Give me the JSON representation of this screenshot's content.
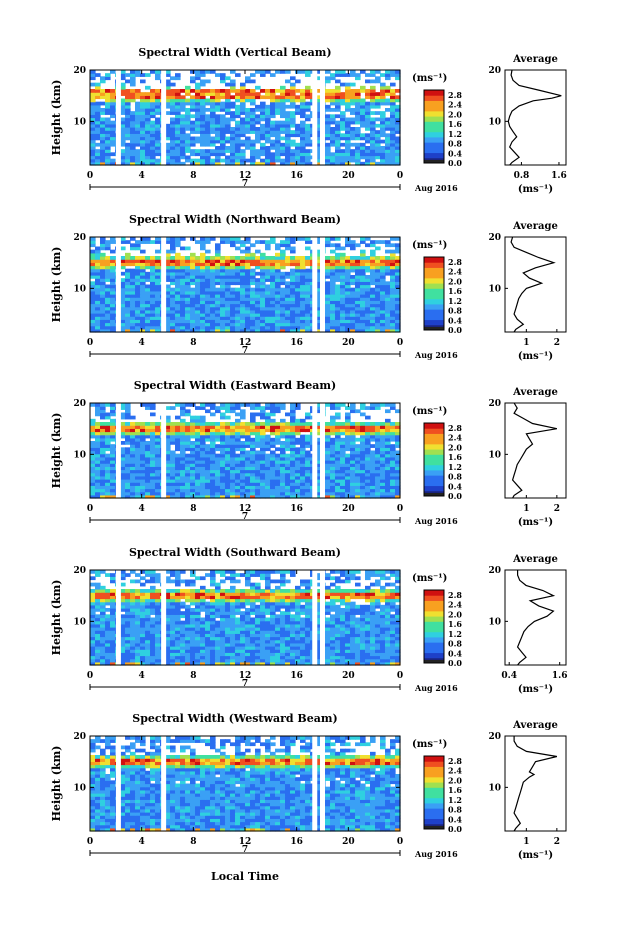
{
  "figure": {
    "local_time_label": "Local Time",
    "unit_label": "(ms⁻¹)",
    "avg_title": "Average",
    "ylabel": "Height (km)",
    "date_label": "Aug 2016",
    "day_marker": "7",
    "colormap": [
      "#1a237e",
      "#1e40c8",
      "#2a6ef0",
      "#3aa0f5",
      "#2fd0e0",
      "#40e0a0",
      "#a0e050",
      "#f0e030",
      "#f8a020",
      "#f05020",
      "#d01010"
    ]
  },
  "chart_data": [
    {
      "type": "heatmap",
      "title": "Spectral Width (Vertical Beam)",
      "xlabel": "Local Time",
      "ylabel": "Height (km)",
      "x_ticks": [
        "0",
        "4",
        "8",
        "12",
        "16",
        "20",
        "0"
      ],
      "y_ticks": [
        "10",
        "20"
      ],
      "xlim": [
        0,
        24
      ],
      "ylim": [
        1.5,
        20
      ],
      "colorbar": {
        "unit": "(ms⁻¹)",
        "ticks": [
          "0.0",
          "0.4",
          "0.8",
          "1.2",
          "1.6",
          "2.0",
          "2.4",
          "2.8"
        ],
        "range": [
          0,
          3.0
        ]
      },
      "date": "Aug 2016",
      "day": "7",
      "data_gaps_local_time": [
        2.2,
        5.7,
        17.4,
        18.0
      ],
      "average_profile": {
        "xlabel": "(ms⁻¹)",
        "x_ticks": [
          "0.8",
          "1.6"
        ],
        "xlim": [
          0.45,
          1.75
        ],
        "height_km": [
          1.5,
          2,
          3,
          4,
          5,
          6,
          7,
          8,
          9,
          10,
          11,
          12,
          13,
          14,
          14.5,
          15,
          16,
          17,
          18,
          19,
          20
        ],
        "width": [
          0.55,
          0.6,
          0.75,
          0.65,
          0.55,
          0.6,
          0.7,
          0.62,
          0.55,
          0.52,
          0.55,
          0.6,
          0.75,
          1.05,
          1.45,
          1.65,
          1.2,
          0.75,
          0.62,
          0.58,
          0.6
        ]
      }
    },
    {
      "type": "heatmap",
      "title": "Spectral Width (Northward Beam)",
      "xlabel": "Local Time",
      "ylabel": "Height (km)",
      "x_ticks": [
        "0",
        "4",
        "8",
        "12",
        "16",
        "20",
        "0"
      ],
      "y_ticks": [
        "10",
        "20"
      ],
      "xlim": [
        0,
        24
      ],
      "ylim": [
        1.5,
        20
      ],
      "colorbar": {
        "unit": "(ms⁻¹)",
        "ticks": [
          "0.0",
          "0.4",
          "0.8",
          "1.2",
          "1.6",
          "2.0",
          "2.4",
          "2.8"
        ],
        "range": [
          0,
          3.0
        ]
      },
      "date": "Aug 2016",
      "day": "7",
      "data_gaps_local_time": [
        2.2,
        5.7,
        17.4,
        18.0
      ],
      "average_profile": {
        "xlabel": "(ms⁻¹)",
        "x_ticks": [
          "1",
          "2"
        ],
        "xlim": [
          0.3,
          2.3
        ],
        "height_km": [
          1.5,
          2,
          3,
          4,
          5,
          6,
          7,
          8,
          9,
          10,
          11,
          12,
          13,
          14,
          15,
          16,
          17,
          18,
          19,
          20
        ],
        "width": [
          0.6,
          0.65,
          0.9,
          0.7,
          0.6,
          0.65,
          0.7,
          0.75,
          0.85,
          1.0,
          1.5,
          1.1,
          0.9,
          1.3,
          1.9,
          1.4,
          1.0,
          0.6,
          0.5,
          0.55
        ]
      }
    },
    {
      "type": "heatmap",
      "title": "Spectral Width (Eastward Beam)",
      "xlabel": "Local Time",
      "ylabel": "Height (km)",
      "x_ticks": [
        "0",
        "4",
        "8",
        "12",
        "16",
        "20",
        "0"
      ],
      "y_ticks": [
        "10",
        "20"
      ],
      "xlim": [
        0,
        24
      ],
      "ylim": [
        1.5,
        20
      ],
      "colorbar": {
        "unit": "(ms⁻¹)",
        "ticks": [
          "0.0",
          "0.4",
          "0.8",
          "1.2",
          "1.6",
          "2.0",
          "2.4",
          "2.8"
        ],
        "range": [
          0,
          3.0
        ]
      },
      "date": "Aug 2016",
      "day": "7",
      "data_gaps_local_time": [
        2.2,
        5.7,
        17.4,
        18.0
      ],
      "average_profile": {
        "xlabel": "(ms⁻¹)",
        "x_ticks": [
          "1",
          "2"
        ],
        "xlim": [
          0.3,
          2.3
        ],
        "height_km": [
          1.5,
          2,
          3,
          4,
          5,
          6,
          7,
          8,
          9,
          10,
          11,
          12,
          13,
          14,
          15,
          16,
          17,
          18,
          19,
          20
        ],
        "width": [
          0.55,
          0.6,
          0.85,
          0.7,
          0.55,
          0.6,
          0.65,
          0.7,
          0.8,
          0.9,
          1.0,
          1.2,
          1.1,
          1.0,
          2.0,
          1.2,
          0.9,
          0.6,
          0.7,
          0.6
        ]
      }
    },
    {
      "type": "heatmap",
      "title": "Spectral Width (Southward Beam)",
      "xlabel": "Local Time",
      "ylabel": "Height (km)",
      "x_ticks": [
        "0",
        "4",
        "8",
        "12",
        "16",
        "20",
        "0"
      ],
      "y_ticks": [
        "10",
        "20"
      ],
      "xlim": [
        0,
        24
      ],
      "ylim": [
        1.5,
        20
      ],
      "colorbar": {
        "unit": "(ms⁻¹)",
        "ticks": [
          "0.0",
          "0.4",
          "0.8",
          "1.2",
          "1.6",
          "2.0",
          "2.4",
          "2.8"
        ],
        "range": [
          0,
          3.0
        ]
      },
      "date": "Aug 2016",
      "day": "7",
      "data_gaps_local_time": [
        2.2,
        5.7,
        17.4,
        18.0
      ],
      "average_profile": {
        "xlabel": "(ms⁻¹)",
        "x_ticks": [
          "0.4",
          "1.6"
        ],
        "xlim": [
          0.3,
          1.75
        ],
        "height_km": [
          1.5,
          2,
          3,
          4,
          5,
          6,
          7,
          8,
          9,
          10,
          11,
          12,
          13,
          14,
          15,
          16,
          17,
          18,
          19,
          20
        ],
        "width": [
          0.6,
          0.65,
          0.8,
          0.7,
          0.6,
          0.65,
          0.7,
          0.75,
          0.85,
          1.0,
          1.3,
          1.45,
          1.1,
          0.9,
          1.45,
          1.2,
          0.8,
          0.65,
          0.6,
          0.6
        ]
      }
    },
    {
      "type": "heatmap",
      "title": "Spectral Width (Westward Beam)",
      "xlabel": "Local Time",
      "ylabel": "Height (km)",
      "x_ticks": [
        "0",
        "4",
        "8",
        "12",
        "16",
        "20",
        "0"
      ],
      "y_ticks": [
        "10",
        "20"
      ],
      "xlim": [
        0,
        24
      ],
      "ylim": [
        1.5,
        20
      ],
      "colorbar": {
        "unit": "(ms⁻¹)",
        "ticks": [
          "0.0",
          "0.4",
          "0.8",
          "1.2",
          "1.6",
          "2.0",
          "2.4",
          "2.8"
        ],
        "range": [
          0,
          3.0
        ]
      },
      "date": "Aug 2016",
      "day": "7",
      "data_gaps_local_time": [
        2.2,
        5.7,
        17.4,
        18.0
      ],
      "average_profile": {
        "xlabel": "(ms⁻¹)",
        "x_ticks": [
          "1",
          "2"
        ],
        "xlim": [
          0.3,
          2.3
        ],
        "height_km": [
          1.5,
          2,
          3,
          4,
          5,
          6,
          7,
          8,
          9,
          10,
          11,
          12,
          12.5,
          13,
          14,
          15,
          16,
          17,
          18,
          19,
          20
        ],
        "width": [
          0.6,
          0.65,
          0.8,
          0.7,
          0.6,
          0.65,
          0.7,
          0.75,
          0.8,
          0.85,
          0.9,
          1.1,
          1.25,
          1.1,
          1.2,
          1.3,
          2.0,
          1.0,
          0.7,
          0.6,
          0.6
        ]
      }
    }
  ]
}
